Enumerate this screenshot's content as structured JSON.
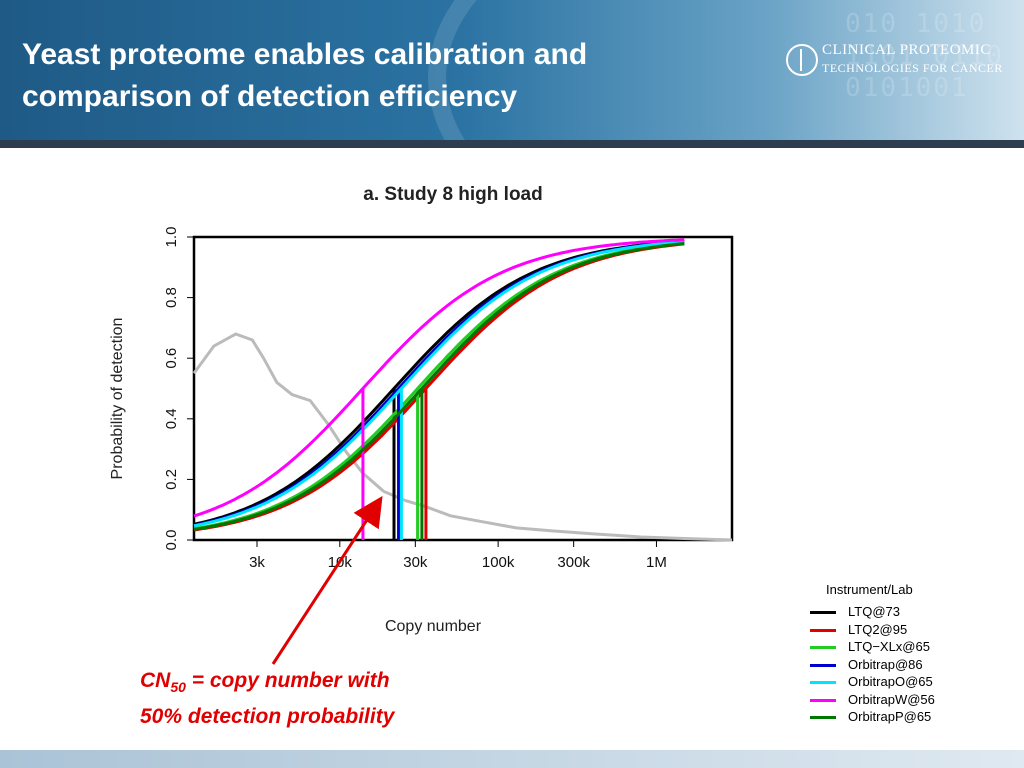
{
  "slide": {
    "title": "Yeast proteome enables calibration and comparison of detection efficiency",
    "logo": {
      "line1": "CLINICAL PROTEOMIC",
      "line2": "TECHNOLOGIES FOR CANCER"
    },
    "callout_cn": "CN",
    "callout_sub": "50",
    "callout_rest": " = copy number with",
    "callout_line2": "50% detection probability",
    "colors": {
      "header": "#2b73a3",
      "callout": "#e00000"
    }
  },
  "chart_data": {
    "type": "line",
    "title": "a. Study 8 high load",
    "xlabel": "Copy number",
    "ylabel": "Probability of detection",
    "xscale": "log",
    "xlim": [
      1200,
      3000000
    ],
    "ylim": [
      0,
      1
    ],
    "x_ticks": [
      {
        "value": 3000,
        "label": "3k"
      },
      {
        "value": 10000,
        "label": "10k"
      },
      {
        "value": 30000,
        "label": "30k"
      },
      {
        "value": 100000,
        "label": "100k"
      },
      {
        "value": 300000,
        "label": "300k"
      },
      {
        "value": 1000000,
        "label": "1M"
      }
    ],
    "y_ticks": [
      {
        "value": 0.0,
        "label": "0.0"
      },
      {
        "value": 0.2,
        "label": "0.2"
      },
      {
        "value": 0.4,
        "label": "0.4"
      },
      {
        "value": 0.6,
        "label": "0.6"
      },
      {
        "value": 0.8,
        "label": "0.8"
      },
      {
        "value": 1.0,
        "label": "1.0"
      }
    ],
    "legend_title": "Instrument/Lab",
    "legend_position": "bottom-right",
    "series": [
      {
        "name": "LTQ@73",
        "color": "#000000",
        "cn50": 22000,
        "slope": 1.0
      },
      {
        "name": "LTQ2@95",
        "color": "#e00000",
        "cn50": 35000,
        "slope": 1.0
      },
      {
        "name": "LTQ−XLx@65",
        "color": "#22cc22",
        "cn50": 31000,
        "slope": 1.0
      },
      {
        "name": "Orbitrap@86",
        "color": "#0000cc",
        "cn50": 23500,
        "slope": 1.0
      },
      {
        "name": "OrbitrapO@65",
        "color": "#00e5ff",
        "cn50": 24500,
        "slope": 1.0
      },
      {
        "name": "OrbitrapW@56",
        "color": "#ff00ff",
        "cn50": 14000,
        "slope": 1.0
      },
      {
        "name": "OrbitrapP@65",
        "color": "#007700",
        "cn50": 33000,
        "slope": 1.0
      }
    ],
    "density_curve": {
      "color": "#bbbbbb",
      "x": [
        1200,
        1600,
        2200,
        2800,
        3300,
        4000,
        5000,
        6500,
        8500,
        11000,
        14000,
        19000,
        26000,
        35000,
        50000,
        80000,
        130000,
        220000,
        400000,
        800000,
        1500000,
        3000000
      ],
      "y": [
        0.55,
        0.64,
        0.68,
        0.66,
        0.6,
        0.52,
        0.48,
        0.46,
        0.38,
        0.29,
        0.22,
        0.16,
        0.13,
        0.11,
        0.08,
        0.06,
        0.04,
        0.03,
        0.02,
        0.01,
        0.005,
        0.0
      ]
    }
  }
}
